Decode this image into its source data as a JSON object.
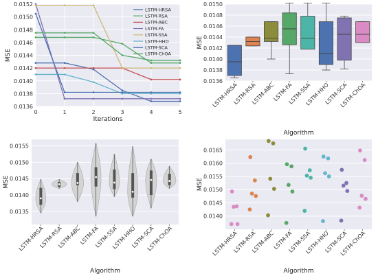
{
  "chart_data": [
    {
      "type": "line",
      "xlabel": "Iterations",
      "ylabel": "MSE",
      "xlim": [
        0,
        5
      ],
      "ylim": [
        0.0136,
        0.0152
      ],
      "xticks": [
        "0",
        "1",
        "2",
        "3",
        "4",
        "5"
      ],
      "yticks": [
        "0.0136",
        "0.0138",
        "0.0140",
        "0.0142",
        "0.0144",
        "0.0146",
        "0.0148",
        "0.0150",
        "0.0152"
      ],
      "grid": true,
      "legend_position": "top-right",
      "x": [
        0,
        1,
        2,
        3,
        4,
        5
      ],
      "series": [
        {
          "name": "LSTM-HRSA",
          "color": "#4c72b0",
          "values": [
            0.01428,
            0.01428,
            0.01418,
            0.01385,
            0.01368,
            0.01368
          ]
        },
        {
          "name": "LSTM-RSA",
          "color": "#55a868",
          "values": [
            0.01468,
            0.01468,
            0.01468,
            0.01458,
            0.01428,
            0.01428
          ]
        },
        {
          "name": "LSTM-ABC",
          "color": "#c44e52",
          "values": [
            0.0142,
            0.0142,
            0.0142,
            0.0142,
            0.01402,
            0.01402
          ]
        },
        {
          "name": "LSTM-FA",
          "color": "#8172b2",
          "values": [
            0.0152,
            0.01372,
            0.01372,
            0.01372,
            0.01372,
            0.01372
          ]
        },
        {
          "name": "LSTM-SSA",
          "color": "#ccb974",
          "values": [
            0.01518,
            0.01518,
            0.01518,
            0.0142,
            0.0142,
            0.0142
          ]
        },
        {
          "name": "LSTM-HHO",
          "color": "#64b5cd",
          "values": [
            0.0141,
            0.0141,
            0.01398,
            0.0138,
            0.0138,
            0.0138
          ]
        },
        {
          "name": "LSTM-SCA",
          "color": "#4c72b0",
          "values": [
            0.01505,
            0.01382,
            0.01382,
            0.01382,
            0.01382,
            0.01382
          ]
        },
        {
          "name": "LSTM-ChOA",
          "color": "#55a868",
          "values": [
            0.01475,
            0.01475,
            0.01475,
            0.0144,
            0.01432,
            0.01432
          ]
        }
      ]
    },
    {
      "type": "box",
      "xlabel": "Algorithm",
      "ylabel": "MSE",
      "ylim": [
        0.0136,
        0.015
      ],
      "yticks": [
        "0.0136",
        "0.0138",
        "0.0140",
        "0.0142",
        "0.0144",
        "0.0146",
        "0.0148",
        "0.0150"
      ],
      "grid": true,
      "categories": [
        "LSTM-HRSA",
        "LSTM-RSA",
        "LSTM-ABC",
        "LSTM-FA",
        "LSTM-SSA",
        "LSTM-HHO",
        "LSTM-SCA",
        "LSTM-ChOA"
      ],
      "colors": [
        "#4c72b0",
        "#dd8452",
        "#8c8c3c",
        "#55a868",
        "#4cb5a8",
        "#4c72b0",
        "#8172b2",
        "#da8bc3"
      ],
      "boxes": [
        {
          "min": 0.01366,
          "q1": 0.0137,
          "median": 0.01395,
          "q3": 0.01425,
          "max": 0.01425
        },
        {
          "min": 0.01424,
          "q1": 0.01424,
          "median": 0.01432,
          "q3": 0.0144,
          "max": 0.0144
        },
        {
          "min": 0.014,
          "q1": 0.01432,
          "median": 0.01438,
          "q3": 0.01468,
          "max": 0.01468
        },
        {
          "min": 0.01373,
          "q1": 0.01426,
          "median": 0.01455,
          "q3": 0.01484,
          "max": 0.01502
        },
        {
          "min": 0.01418,
          "q1": 0.01418,
          "median": 0.01438,
          "q3": 0.01478,
          "max": 0.01502
        },
        {
          "min": 0.0138,
          "q1": 0.0139,
          "median": 0.0141,
          "q3": 0.01468,
          "max": 0.01502
        },
        {
          "min": 0.01382,
          "q1": 0.01398,
          "median": 0.01445,
          "q3": 0.01475,
          "max": 0.01478
        },
        {
          "min": 0.0143,
          "q1": 0.0143,
          "median": 0.01445,
          "q3": 0.01468,
          "max": 0.01468
        }
      ]
    },
    {
      "type": "violin",
      "xlabel": "Algorithm",
      "ylabel": "MSE",
      "ylim": [
        0.0131,
        0.0157
      ],
      "yticks": [
        "0.0135",
        "0.0140",
        "0.0145",
        "0.0150",
        "0.0155"
      ],
      "grid": true,
      "categories": [
        "LSTM-HRSA",
        "LSTM-RSA",
        "LSTM-ABC",
        "LSTM-FA",
        "LSTM-SSA",
        "LSTM-HHO",
        "LSTM-SCA",
        "LSTM-ChOA"
      ],
      "violins": [
        {
          "low": 0.01345,
          "high": 0.01448,
          "median": 0.0139,
          "q1": 0.0137,
          "q3": 0.01422,
          "width": 0.55
        },
        {
          "low": 0.0142,
          "high": 0.01448,
          "median": 0.01433,
          "q1": 0.01425,
          "q3": 0.0144,
          "width": 0.8
        },
        {
          "low": 0.0138,
          "high": 0.015,
          "median": 0.01437,
          "q1": 0.0143,
          "q3": 0.01467,
          "width": 0.65
        },
        {
          "low": 0.01335,
          "high": 0.01558,
          "median": 0.01455,
          "q1": 0.01426,
          "q3": 0.01485,
          "width": 0.55
        },
        {
          "low": 0.01395,
          "high": 0.01525,
          "median": 0.01438,
          "q1": 0.01418,
          "q3": 0.01478,
          "width": 0.55
        },
        {
          "low": 0.01335,
          "high": 0.01548,
          "median": 0.0141,
          "q1": 0.01392,
          "q3": 0.01467,
          "width": 0.55
        },
        {
          "low": 0.0136,
          "high": 0.0151,
          "median": 0.01446,
          "q1": 0.014,
          "q3": 0.01475,
          "width": 0.6
        },
        {
          "low": 0.0142,
          "high": 0.01488,
          "median": 0.01443,
          "q1": 0.0143,
          "q3": 0.01465,
          "width": 0.7
        }
      ]
    },
    {
      "type": "scatter",
      "xlabel": "Algorithm",
      "ylabel": "MSE",
      "ylim": [
        0.0135,
        0.0169
      ],
      "yticks": [
        "0.0140",
        "0.0145",
        "0.0150",
        "0.0155",
        "0.0160",
        "0.0165"
      ],
      "grid": true,
      "categories": [
        "LSTM-HRSA",
        "LSTM-RSA",
        "LSTM-ABC",
        "LSTM-FA",
        "LSTM-SSA",
        "LSTM-HHO",
        "LSTM-SCA",
        "LSTM-ChOA"
      ],
      "colors": [
        "#da8bc3",
        "#dd8452",
        "#8c8c3c",
        "#55a868",
        "#4cb5a8",
        "#64b5cd",
        "#8172b2",
        "#da8bc3"
      ],
      "points": [
        [
          0.01493,
          0.01437,
          0.01435,
          0.0137,
          0.0137
        ],
        [
          0.01623,
          0.01535,
          0.01485,
          0.01476,
          0.01425
        ],
        [
          0.01684,
          0.01675,
          0.01541,
          0.01503,
          0.01403
        ],
        [
          0.01596,
          0.01588,
          0.01518,
          0.01493,
          0.01374
        ],
        [
          0.01655,
          0.01573,
          0.01553,
          0.01545,
          0.0142
        ],
        [
          0.01625,
          0.01618,
          0.01562,
          0.0155,
          0.01381
        ],
        [
          0.01575,
          0.01525,
          0.01515,
          0.01495,
          0.01383
        ],
        [
          0.01648,
          0.01612,
          0.01477,
          0.01465,
          0.01432
        ]
      ]
    }
  ]
}
